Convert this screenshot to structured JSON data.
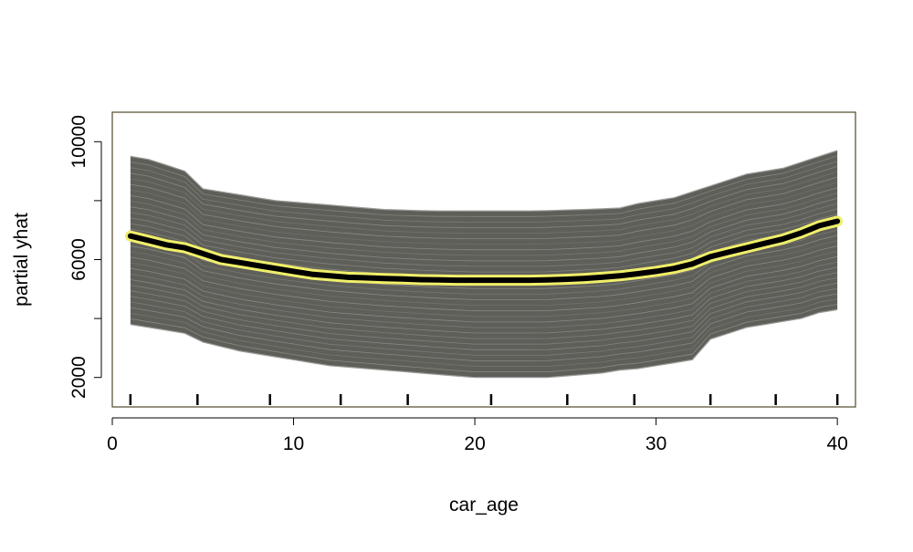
{
  "chart_data": {
    "type": "line",
    "title": "",
    "xlabel": "car_age",
    "ylabel": "partial yhat",
    "xlim": [
      0,
      41
    ],
    "ylim": [
      1000,
      11000
    ],
    "x_ticks": [
      0,
      10,
      20,
      30,
      40
    ],
    "y_ticks": [
      2000,
      6000,
      10000
    ],
    "grid": false,
    "legend": "none",
    "colors": {
      "ice_lines": "#6b6b6b",
      "ice_band": "#5f5f5a",
      "pdp_line": "#000000",
      "pdp_halo": "#f0ef6a",
      "frame": "#4f4a2a"
    },
    "rug": [
      1,
      4.7,
      8.7,
      12.6,
      16.3,
      20.9,
      25.1,
      28.8,
      33,
      36.6,
      40
    ],
    "series": [
      {
        "role": "pdp",
        "x": [
          1,
          2,
          3,
          4,
          5,
          6,
          7,
          8,
          9,
          10,
          11,
          12,
          13,
          14,
          15,
          16,
          17,
          18,
          19,
          20,
          21,
          22,
          23,
          24,
          25,
          26,
          27,
          28,
          29,
          30,
          31,
          32,
          33,
          34,
          35,
          36,
          37,
          38,
          39,
          40
        ],
        "y": [
          6800,
          6650,
          6500,
          6400,
          6200,
          6000,
          5900,
          5800,
          5700,
          5600,
          5500,
          5450,
          5400,
          5380,
          5360,
          5340,
          5320,
          5310,
          5300,
          5300,
          5300,
          5300,
          5300,
          5310,
          5330,
          5360,
          5400,
          5450,
          5520,
          5600,
          5700,
          5850,
          6100,
          6250,
          6400,
          6550,
          6700,
          6900,
          7150,
          7300
        ]
      },
      {
        "role": "ice-upper-envelope",
        "x": [
          1,
          2,
          3,
          4,
          5,
          6,
          7,
          8,
          9,
          10,
          11,
          12,
          13,
          14,
          15,
          16,
          17,
          18,
          19,
          20,
          21,
          22,
          23,
          24,
          25,
          26,
          27,
          28,
          29,
          30,
          31,
          32,
          33,
          34,
          35,
          36,
          37,
          38,
          39,
          40
        ],
        "y": [
          9500,
          9400,
          9200,
          9000,
          8400,
          8300,
          8200,
          8100,
          8000,
          7950,
          7900,
          7850,
          7800,
          7750,
          7700,
          7680,
          7660,
          7650,
          7650,
          7650,
          7650,
          7650,
          7650,
          7660,
          7680,
          7700,
          7720,
          7750,
          7900,
          8000,
          8100,
          8300,
          8500,
          8700,
          8900,
          9000,
          9100,
          9300,
          9500,
          9700
        ]
      },
      {
        "role": "ice-lower-envelope",
        "x": [
          1,
          2,
          3,
          4,
          5,
          6,
          7,
          8,
          9,
          10,
          11,
          12,
          13,
          14,
          15,
          16,
          17,
          18,
          19,
          20,
          21,
          22,
          23,
          24,
          25,
          26,
          27,
          28,
          29,
          30,
          31,
          32,
          33,
          34,
          35,
          36,
          37,
          38,
          39,
          40
        ],
        "y": [
          3800,
          3700,
          3600,
          3500,
          3200,
          3050,
          2900,
          2800,
          2700,
          2600,
          2500,
          2400,
          2350,
          2300,
          2250,
          2200,
          2150,
          2100,
          2050,
          2000,
          2000,
          2000,
          2000,
          2000,
          2050,
          2100,
          2150,
          2250,
          2300,
          2400,
          2500,
          2600,
          3300,
          3500,
          3700,
          3800,
          3900,
          4000,
          4200,
          4300
        ]
      }
    ]
  }
}
